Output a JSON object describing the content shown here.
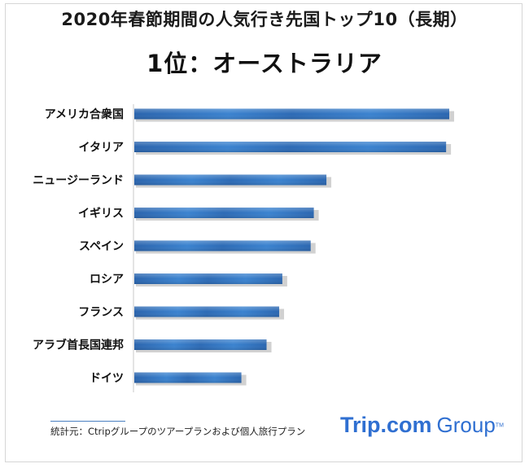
{
  "title": "2020年春節期間の人気行き先国トップ10（長期）",
  "subtitle": "1位：オーストラリア",
  "chart_data": {
    "type": "bar",
    "orientation": "horizontal",
    "categories": [
      "アメリカ合衆国",
      "イタリア",
      "ニュージーランド",
      "イギリス",
      "スペイン",
      "ロシア",
      "フランス",
      "アラブ首長国連邦",
      "ドイツ"
    ],
    "values": [
      100,
      99,
      61,
      57,
      56,
      47,
      46,
      42,
      34
    ],
    "xlim": [
      0,
      100
    ],
    "xlabel": "",
    "ylabel": "",
    "grid": false,
    "legend": "none",
    "bar_color": "#2e6fb8"
  },
  "footer": {
    "source": "統計元：Ctripグループのツアープランおよび個人旅行プラン",
    "logo_brand": "Trip.com",
    "logo_group": "Group",
    "logo_tm": "TM"
  }
}
